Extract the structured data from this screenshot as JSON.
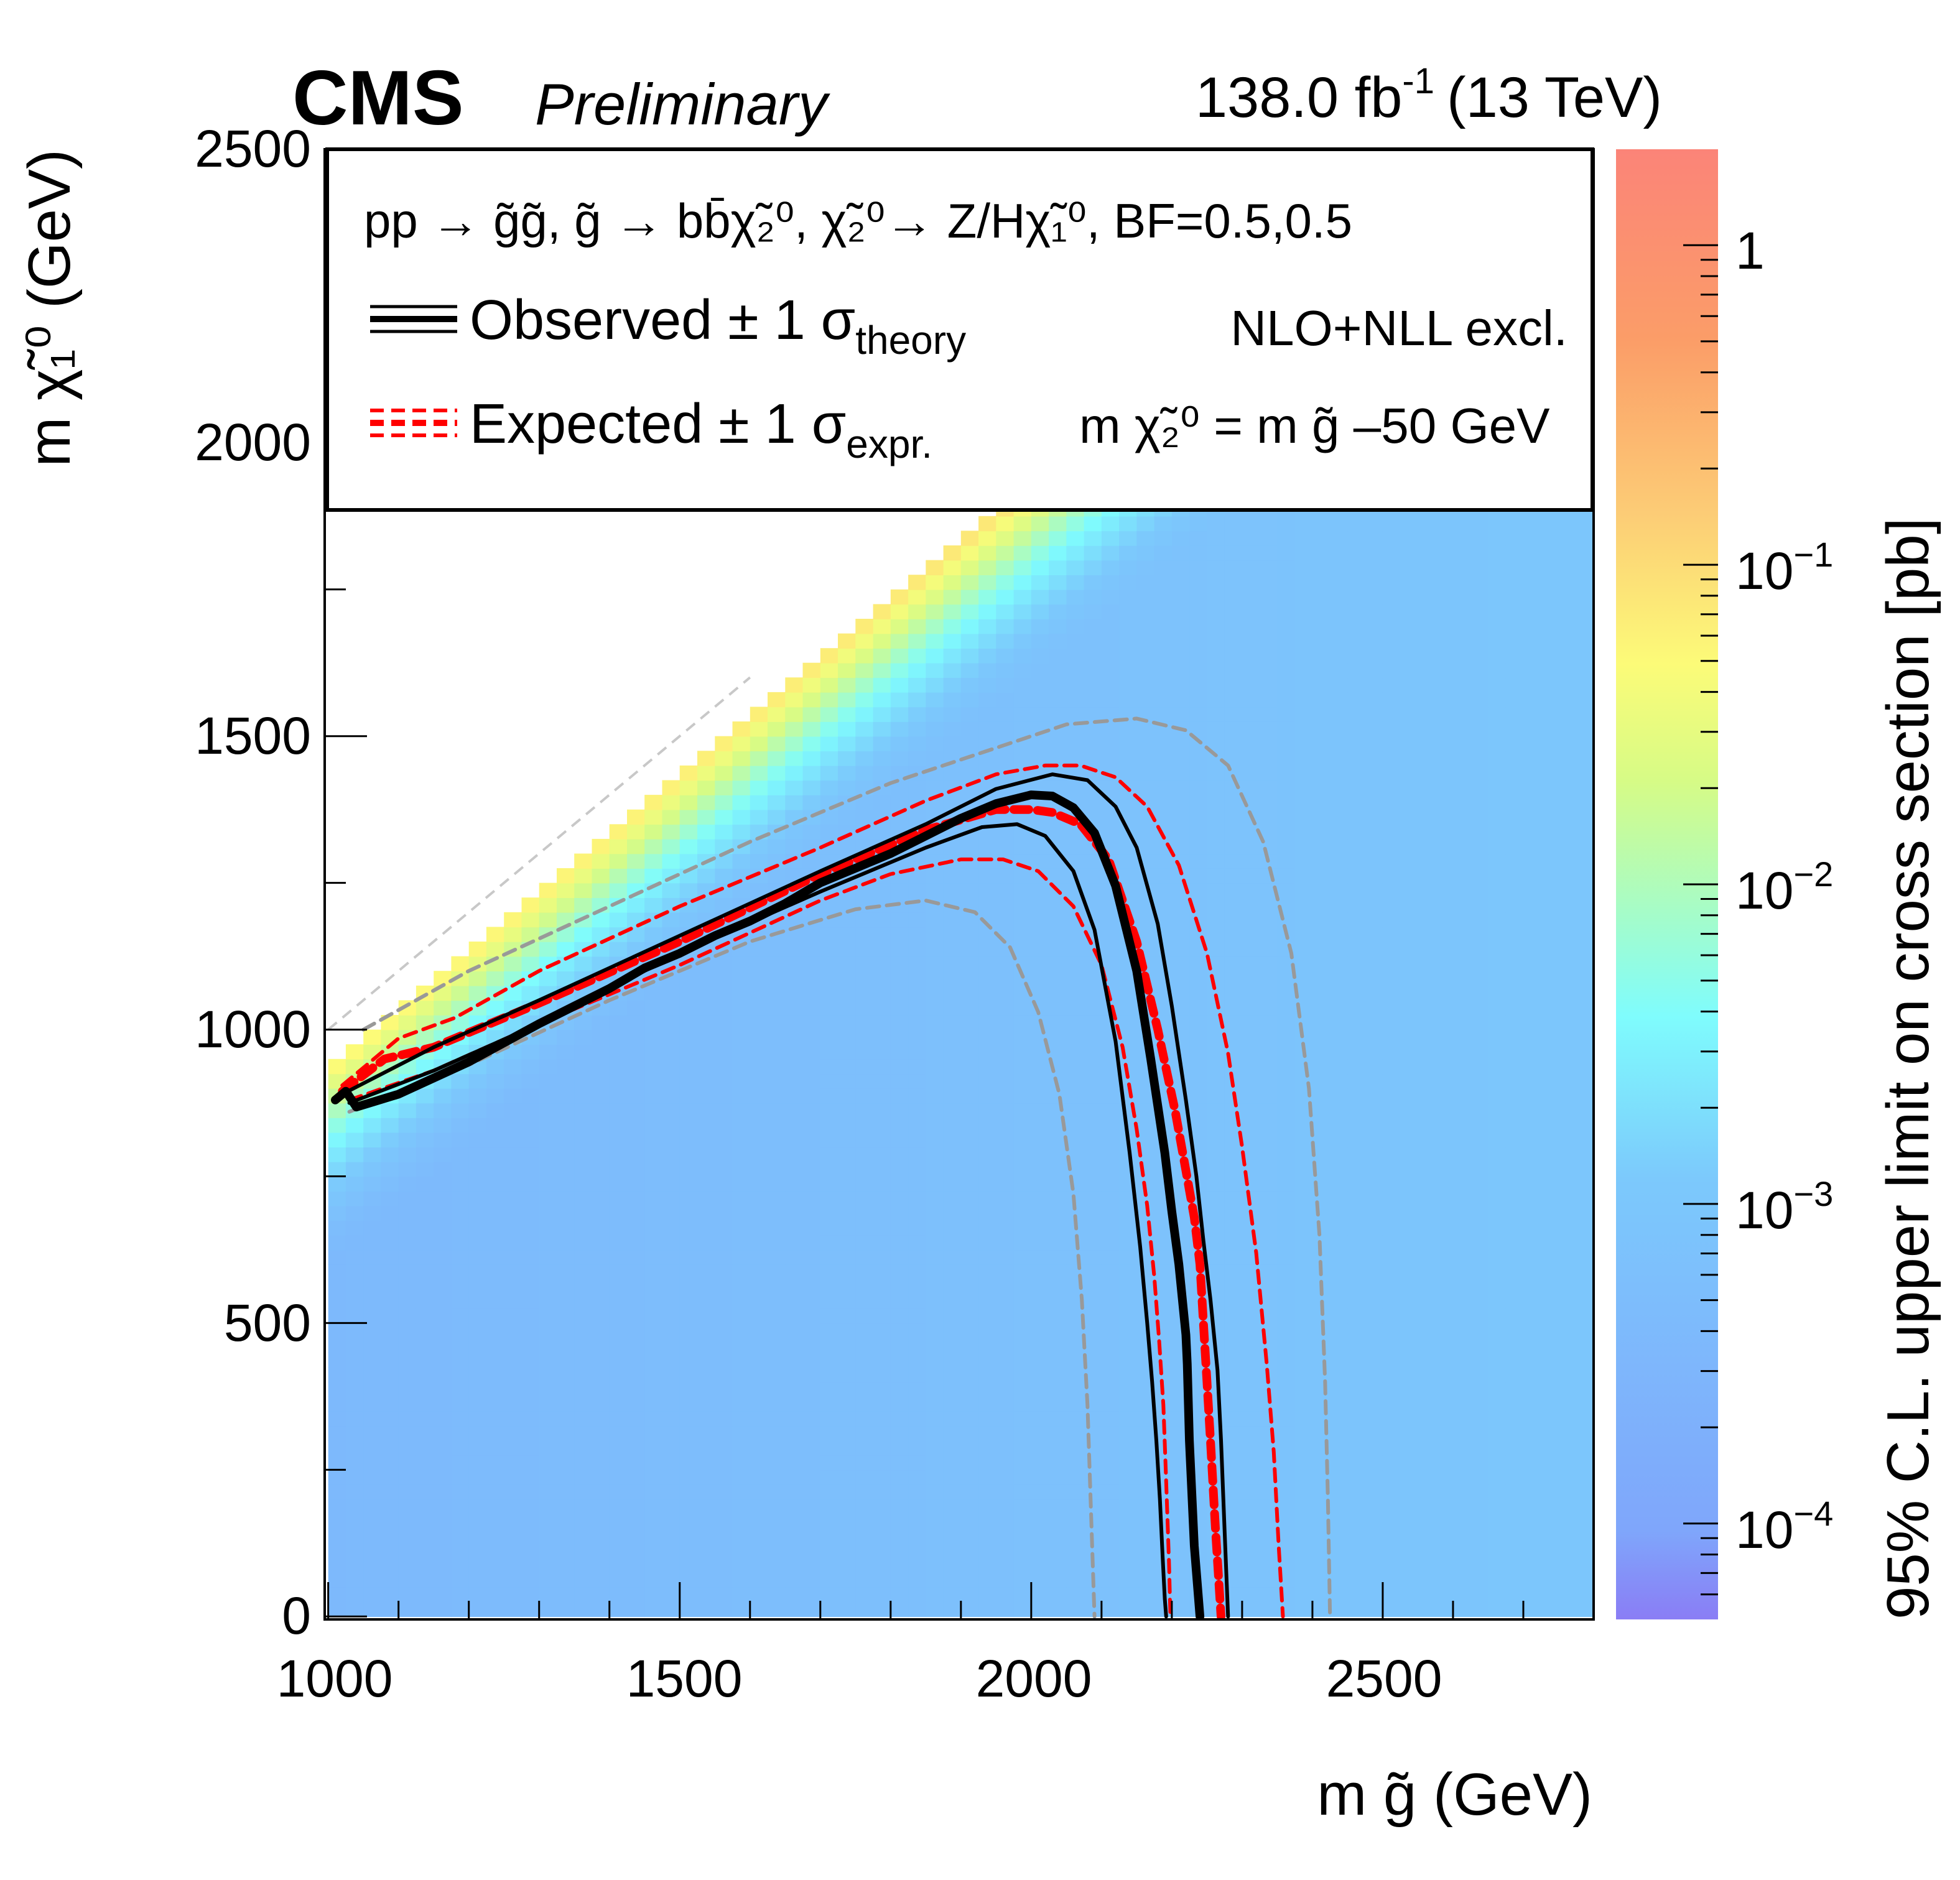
{
  "header": {
    "experiment": "CMS",
    "status": "Preliminary",
    "lumi_value": "138.0 fb",
    "lumi_exp": "-1",
    "energy": "(13 TeV)"
  },
  "legend": {
    "process": "pp → g̃g̃, g̃ → bb̄χ̃₂⁰, χ̃₂⁰→ Z/Hχ̃₁⁰, BF=0.5,0.5",
    "observed_label": "Observed ± 1 σ",
    "observed_sub": "theory",
    "expected_label": "Expected ± 1 σ",
    "expected_sub": "expr.",
    "xsec_note": "NLO+NLL excl.",
    "mass_relation": "m χ̃₂⁰ = m g̃ –50 GeV"
  },
  "colors": {
    "observed": "#000000",
    "expected": "#ff0000",
    "expected_outer": "#999999",
    "diagonal": "#c8c8c8"
  },
  "chart_data": {
    "type": "heatmap",
    "title": "CMS Preliminary",
    "xlabel": "m g̃ (GeV)",
    "ylabel": "m χ̃₁⁰ (GeV)",
    "zlabel": "95% C.L. upper limit on cross section [pb]",
    "xlim": [
      995,
      2800
    ],
    "ylim": [
      -5,
      2500
    ],
    "zlim_log10": [
      -4.3,
      0.3
    ],
    "x_ticks": [
      "1000",
      "1500",
      "2000",
      "2500"
    ],
    "y_ticks": [
      "0",
      "500",
      "1000",
      "1500",
      "2000",
      "2500"
    ],
    "z_ticks": [
      {
        "base": "1",
        "exp": ""
      },
      {
        "base": "10",
        "exp": "−1"
      },
      {
        "base": "10",
        "exp": "−2"
      },
      {
        "base": "10",
        "exp": "−3"
      },
      {
        "base": "10",
        "exp": "−4"
      }
    ],
    "z_tick_values_log10": [
      0,
      -1,
      -2,
      -3,
      -4
    ],
    "series": [
      {
        "name": "Observed",
        "style": "thick-solid",
        "x": [
          1010,
          1025,
          1040,
          1100,
          1200,
          1300,
          1350,
          1400,
          1450,
          1500,
          1550,
          1600,
          1650,
          1700,
          1750,
          1800,
          1850,
          1900,
          1950,
          2000,
          2030,
          2060,
          2090,
          2120,
          2150,
          2170,
          2190,
          2200,
          2210,
          2220,
          2222,
          2225,
          2232,
          2240
        ],
        "y": [
          880,
          895,
          868,
          890,
          945,
          1010,
          1040,
          1070,
          1105,
          1130,
          1160,
          1185,
          1215,
          1250,
          1275,
          1300,
          1330,
          1360,
          1385,
          1400,
          1398,
          1378,
          1335,
          1245,
          1100,
          950,
          790,
          690,
          600,
          480,
          430,
          300,
          120,
          0
        ]
      },
      {
        "name": "Observed +1σ theory",
        "style": "thin-solid",
        "x": [
          1020,
          1150,
          1300,
          1500,
          1700,
          1850,
          1950,
          2030,
          2080,
          2120,
          2150,
          2180,
          2200,
          2220,
          2235,
          2245,
          2255,
          2265,
          2270,
          2275,
          2280
        ],
        "y": [
          890,
          970,
          1050,
          1160,
          1270,
          1350,
          1410,
          1435,
          1425,
          1380,
          1310,
          1180,
          1040,
          880,
          750,
          640,
          540,
          420,
          300,
          150,
          0
        ]
      },
      {
        "name": "Observed −1σ theory",
        "style": "thin-solid",
        "x": [
          1030,
          1150,
          1300,
          1500,
          1700,
          1850,
          1930,
          1980,
          2020,
          2060,
          2090,
          2120,
          2140,
          2155,
          2165,
          2172,
          2178,
          2183,
          2187,
          2190,
          2192
        ],
        "y": [
          875,
          930,
          1010,
          1130,
          1235,
          1310,
          1345,
          1350,
          1330,
          1270,
          1170,
          980,
          790,
          630,
          500,
          400,
          300,
          200,
          100,
          30,
          0
        ]
      },
      {
        "name": "Expected",
        "style": "thick-dashed",
        "x": [
          1020,
          1080,
          1150,
          1300,
          1500,
          1700,
          1850,
          1950,
          2000,
          2030,
          2070,
          2110,
          2150,
          2180,
          2205,
          2220,
          2232,
          2240,
          2245,
          2250,
          2255,
          2262,
          2270
        ],
        "y": [
          895,
          950,
          970,
          1045,
          1150,
          1265,
          1340,
          1375,
          1375,
          1370,
          1350,
          1290,
          1150,
          1000,
          860,
          760,
          680,
          600,
          500,
          400,
          300,
          150,
          0
        ]
      },
      {
        "name": "Expected +1σ experiment",
        "style": "thin-dashed",
        "x": [
          1020,
          1100,
          1180,
          1300,
          1500,
          1700,
          1850,
          1950,
          2020,
          2070,
          2120,
          2165,
          2210,
          2250,
          2280,
          2300,
          2320,
          2335,
          2345,
          2352,
          2358
        ],
        "y": [
          905,
          985,
          1020,
          1100,
          1210,
          1310,
          1390,
          1435,
          1450,
          1450,
          1430,
          1380,
          1280,
          1130,
          960,
          800,
          620,
          430,
          280,
          120,
          0
        ]
      },
      {
        "name": "Expected −1σ experiment",
        "style": "thin-dashed",
        "x": [
          1030,
          1150,
          1300,
          1500,
          1700,
          1800,
          1900,
          1960,
          2010,
          2060,
          2100,
          2130,
          2150,
          2165,
          2175,
          2182,
          2188,
          2192,
          2196,
          2198
        ],
        "y": [
          880,
          930,
          1010,
          1110,
          1220,
          1265,
          1290,
          1290,
          1270,
          1210,
          1110,
          970,
          830,
          700,
          580,
          470,
          360,
          230,
          90,
          0
        ]
      },
      {
        "name": "Expected +2σ experiment",
        "style": "grey-dashed",
        "x": [
          1050,
          1200,
          1400,
          1600,
          1800,
          1950,
          2050,
          2150,
          2220,
          2280,
          2330,
          2370,
          2395,
          2410,
          2418,
          2422,
          2425
        ],
        "y": [
          1000,
          1100,
          1210,
          1320,
          1420,
          1480,
          1520,
          1530,
          1510,
          1450,
          1320,
          1130,
          900,
          650,
          400,
          200,
          0
        ]
      },
      {
        "name": "Expected −2σ experiment",
        "style": "grey-dashed",
        "x": [
          1030,
          1200,
          1400,
          1600,
          1750,
          1850,
          1920,
          1970,
          2010,
          2040,
          2060,
          2072,
          2080,
          2085,
          2090
        ],
        "y": [
          860,
          940,
          1050,
          1150,
          1205,
          1220,
          1200,
          1140,
          1030,
          890,
          720,
          540,
          360,
          180,
          0
        ]
      }
    ]
  }
}
